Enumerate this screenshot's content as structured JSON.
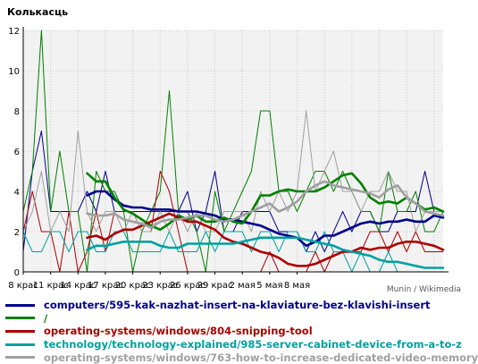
{
  "chart_data": {
    "type": "line",
    "title": "Колькасць",
    "xlabel": "",
    "ylabel": "",
    "ylim": [
      0,
      12
    ],
    "yticks": [
      0,
      2,
      4,
      6,
      8,
      10,
      12
    ],
    "x": [
      0,
      1,
      2,
      3,
      4,
      5,
      6,
      7,
      8,
      9,
      10,
      11,
      12,
      13,
      14,
      15,
      16,
      17,
      18,
      19,
      20,
      21,
      22,
      23,
      24,
      25,
      26,
      27,
      28,
      29,
      30,
      31,
      32,
      33,
      34,
      35,
      36,
      37,
      38,
      39,
      40,
      41,
      42,
      43,
      44,
      45,
      46
    ],
    "xtick_positions": [
      0,
      3,
      6,
      9,
      12,
      15,
      18,
      21,
      24,
      27,
      30,
      33,
      36,
      39,
      42,
      45
    ],
    "xtick_labels": [
      "8 крас",
      "11 крас",
      "14 крас",
      "17 крас",
      "20 крас",
      "23 крас",
      "26 крас",
      "29 крас",
      "2 мая",
      "5 мая",
      "8 мая"
    ],
    "xtick_label_positions": [
      0,
      3,
      6,
      9,
      12,
      15,
      18,
      21,
      24,
      27,
      30
    ],
    "grid": true,
    "legend_position": "bottom",
    "watermark": "Munin / Wikimedia",
    "series": [
      {
        "name": "computers/595-kak-nazhat-insert-na-klaviature-bez-klavishi-insert",
        "color": "#00008b",
        "raw": [
          1,
          5,
          7,
          3,
          3,
          3,
          3,
          4,
          3,
          5,
          3,
          3,
          3,
          3,
          3,
          3,
          3,
          3,
          4,
          2,
          3,
          5,
          2,
          2,
          3,
          3,
          3,
          3,
          2,
          2,
          2,
          1,
          2,
          1,
          2,
          3,
          2,
          3,
          3,
          2,
          2,
          3,
          3,
          3,
          5,
          3,
          3
        ],
        "smooth": [
          null,
          null,
          null,
          null,
          null,
          null,
          null,
          3.8,
          4.0,
          4.0,
          3.6,
          3.3,
          3.2,
          3.2,
          3.1,
          3.1,
          3.1,
          3.0,
          3.0,
          3.0,
          2.9,
          2.8,
          2.6,
          2.6,
          2.5,
          2.4,
          2.3,
          2.1,
          1.9,
          1.8,
          1.7,
          1.3,
          1.5,
          1.8,
          1.8,
          2.0,
          2.2,
          2.4,
          2.5,
          2.4,
          2.5,
          2.5,
          2.6,
          2.5,
          2.5,
          2.8,
          2.7
        ]
      },
      {
        "name": "/",
        "color": "#008000",
        "raw": [
          3,
          5,
          12,
          3,
          6,
          3,
          3,
          0,
          5,
          4,
          4,
          3,
          0,
          2,
          3,
          4,
          9,
          3,
          3,
          2,
          0,
          4,
          2,
          3,
          4,
          5,
          8,
          8,
          4,
          4,
          3,
          4,
          5,
          5,
          4,
          5,
          4,
          3,
          3,
          2,
          5,
          3,
          3,
          4,
          2,
          2,
          3
        ],
        "smooth": [
          null,
          null,
          null,
          null,
          null,
          null,
          null,
          4.9,
          4.5,
          4.5,
          3.7,
          3.1,
          2.9,
          2.6,
          2.3,
          2.1,
          2.4,
          2.8,
          2.6,
          2.8,
          2.5,
          2.5,
          2.7,
          2.5,
          2.4,
          3.0,
          3.8,
          3.8,
          4.0,
          4.1,
          4.0,
          4.0,
          4.0,
          4.2,
          4.5,
          4.8,
          4.9,
          4.4,
          3.7,
          3.4,
          3.5,
          3.4,
          3.7,
          3.4,
          3.1,
          3.2,
          3.0
        ]
      },
      {
        "name": "operating-systems/windows/804-snipping-tool",
        "color": "#aa0000",
        "raw": [
          2,
          4,
          2,
          2,
          0,
          3,
          0,
          1,
          3,
          1,
          3,
          3,
          3,
          2,
          2,
          5,
          4,
          2,
          0,
          0,
          0,
          0,
          0,
          0,
          0,
          0,
          0,
          1,
          0,
          0,
          0,
          0,
          1,
          0,
          1,
          1,
          1,
          1,
          2,
          2,
          1,
          2,
          1,
          2,
          1,
          1,
          1
        ],
        "smooth": [
          null,
          null,
          null,
          null,
          null,
          null,
          null,
          1.7,
          1.8,
          1.6,
          1.9,
          2.1,
          2.1,
          2.3,
          2.5,
          2.7,
          2.9,
          2.7,
          2.5,
          2.5,
          2.3,
          2.1,
          1.7,
          1.5,
          1.4,
          1.2,
          1.0,
          0.9,
          0.7,
          0.4,
          0.3,
          0.3,
          0.4,
          0.6,
          0.8,
          1.0,
          1.0,
          1.2,
          1.1,
          1.2,
          1.2,
          1.4,
          1.5,
          1.5,
          1.4,
          1.3,
          1.1
        ]
      },
      {
        "name": "technology/technology-explained/985-server-cabinet-device-from-a-to-z",
        "color": "#00a0a0",
        "raw": [
          2,
          1,
          1,
          2,
          2,
          1,
          2,
          2,
          1,
          1,
          2,
          2,
          1,
          1,
          1,
          1,
          2,
          1,
          1,
          1,
          2,
          1,
          2,
          2,
          2,
          1,
          2,
          2,
          1,
          2,
          2,
          1,
          1,
          2,
          1,
          1,
          0,
          1,
          0,
          0,
          1,
          0,
          0,
          0,
          0,
          0,
          0
        ],
        "smooth": [
          null,
          null,
          null,
          null,
          null,
          null,
          null,
          1.1,
          1.3,
          1.3,
          1.4,
          1.5,
          1.5,
          1.5,
          1.5,
          1.3,
          1.2,
          1.2,
          1.4,
          1.4,
          1.4,
          1.4,
          1.4,
          1.4,
          1.5,
          1.6,
          1.7,
          1.7,
          1.7,
          1.7,
          1.7,
          1.6,
          1.5,
          1.4,
          1.3,
          1.1,
          1.0,
          0.9,
          0.8,
          0.6,
          0.5,
          0.5,
          0.4,
          0.3,
          0.2,
          0.2,
          0.2
        ]
      },
      {
        "name": "operating-systems/windows/763-how-to-increase-dedicated-video-memory",
        "color": "#a0a0a0",
        "raw": [
          2,
          3,
          5,
          2,
          3,
          2,
          7,
          3,
          2,
          3,
          3,
          2,
          3,
          2,
          2,
          3,
          2,
          3,
          2,
          3,
          2,
          2,
          3,
          3,
          3,
          2,
          4,
          3,
          4,
          3,
          4,
          8,
          4,
          5,
          6,
          4,
          4,
          3,
          4,
          4,
          5,
          4,
          4,
          2,
          3,
          3,
          3
        ],
        "smooth": [
          null,
          null,
          null,
          null,
          null,
          null,
          null,
          2.9,
          2.8,
          2.8,
          2.9,
          2.6,
          2.5,
          2.4,
          2.2,
          2.5,
          2.6,
          2.6,
          2.7,
          2.8,
          2.8,
          2.6,
          2.5,
          2.6,
          2.8,
          3.0,
          3.2,
          3.4,
          3.0,
          3.2,
          3.5,
          4.0,
          4.3,
          4.5,
          4.3,
          4.2,
          4.1,
          4.0,
          3.9,
          3.7,
          4.1,
          4.3,
          3.7,
          3.4,
          3.0,
          2.9,
          2.8
        ]
      }
    ]
  }
}
